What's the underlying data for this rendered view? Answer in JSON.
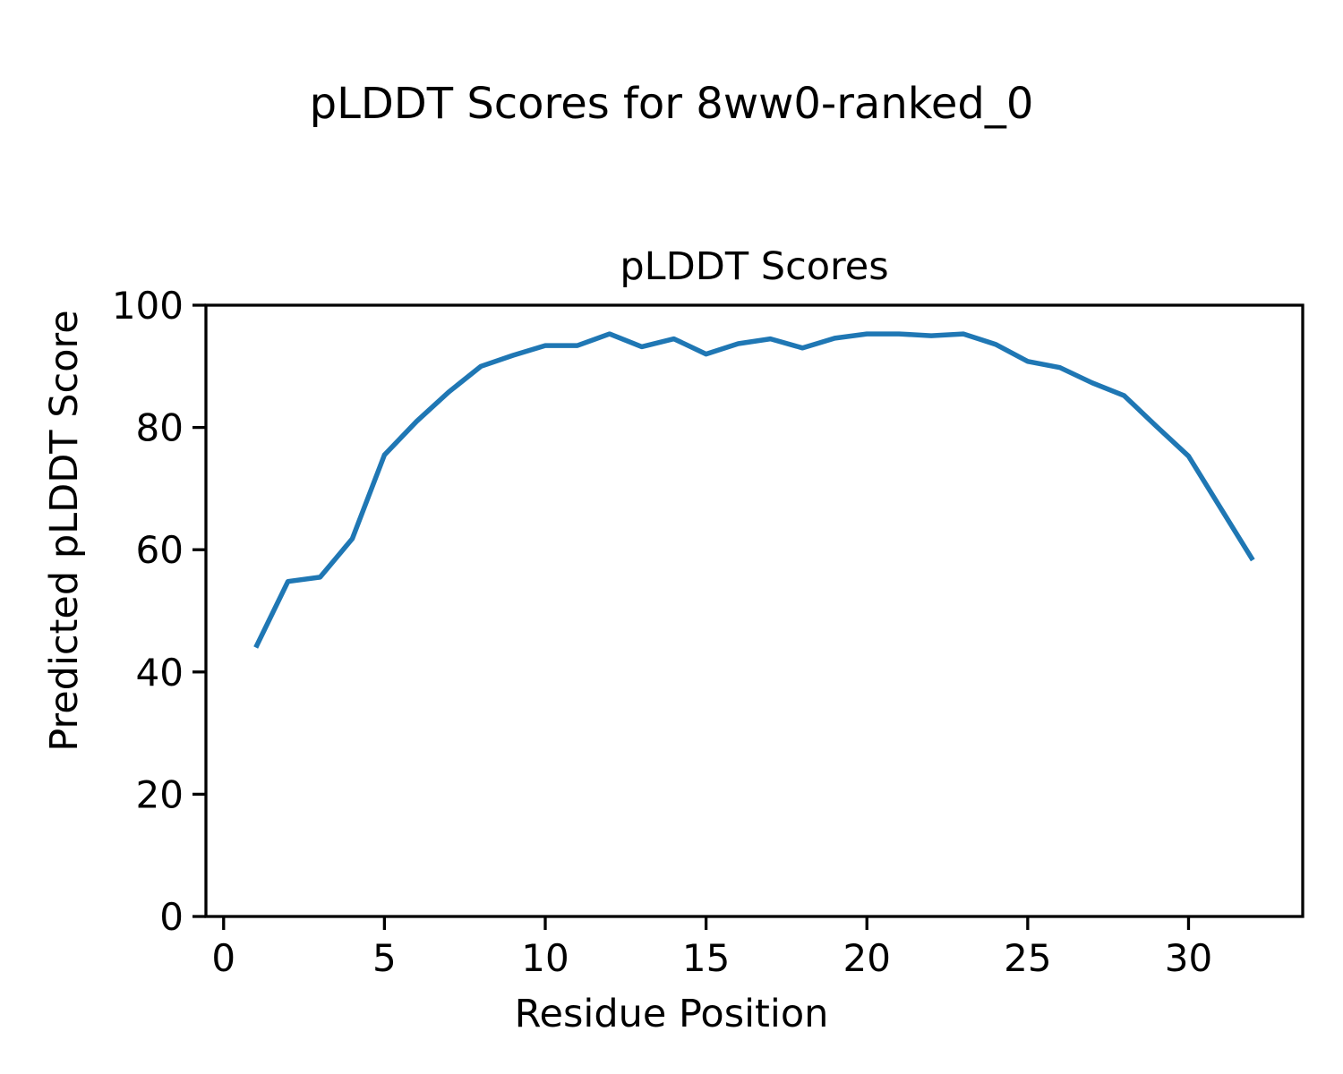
{
  "figure": {
    "suptitle": "pLDDT Scores for 8ww0-ranked_0",
    "background_color": "#ffffff",
    "text_color": "#000000"
  },
  "chart_data": {
    "type": "line",
    "title": "pLDDT Scores",
    "xlabel": "Residue Position",
    "ylabel": "Predicted pLDDT Score",
    "legend": null,
    "grid": false,
    "line_color": "#1f77b4",
    "axis_color": "#000000",
    "xlim": [
      -0.55,
      33.55
    ],
    "ylim": [
      0,
      100
    ],
    "xticks": [
      0,
      5,
      10,
      15,
      20,
      25,
      30
    ],
    "yticks": [
      0,
      20,
      40,
      60,
      80,
      100
    ],
    "x": [
      1,
      2,
      3,
      4,
      5,
      6,
      7,
      8,
      9,
      10,
      11,
      12,
      13,
      14,
      15,
      16,
      17,
      18,
      19,
      20,
      21,
      22,
      23,
      24,
      25,
      26,
      27,
      28,
      29,
      30,
      31,
      32
    ],
    "y": [
      44.0,
      54.8,
      55.5,
      61.8,
      75.5,
      81.0,
      85.8,
      90.0,
      91.8,
      93.4,
      93.4,
      95.3,
      93.2,
      94.5,
      92.0,
      93.7,
      94.5,
      93.0,
      94.6,
      95.3,
      95.3,
      95.0,
      95.3,
      93.6,
      90.8,
      89.8,
      87.3,
      85.2,
      80.2,
      75.3,
      66.8,
      58.3
    ]
  }
}
